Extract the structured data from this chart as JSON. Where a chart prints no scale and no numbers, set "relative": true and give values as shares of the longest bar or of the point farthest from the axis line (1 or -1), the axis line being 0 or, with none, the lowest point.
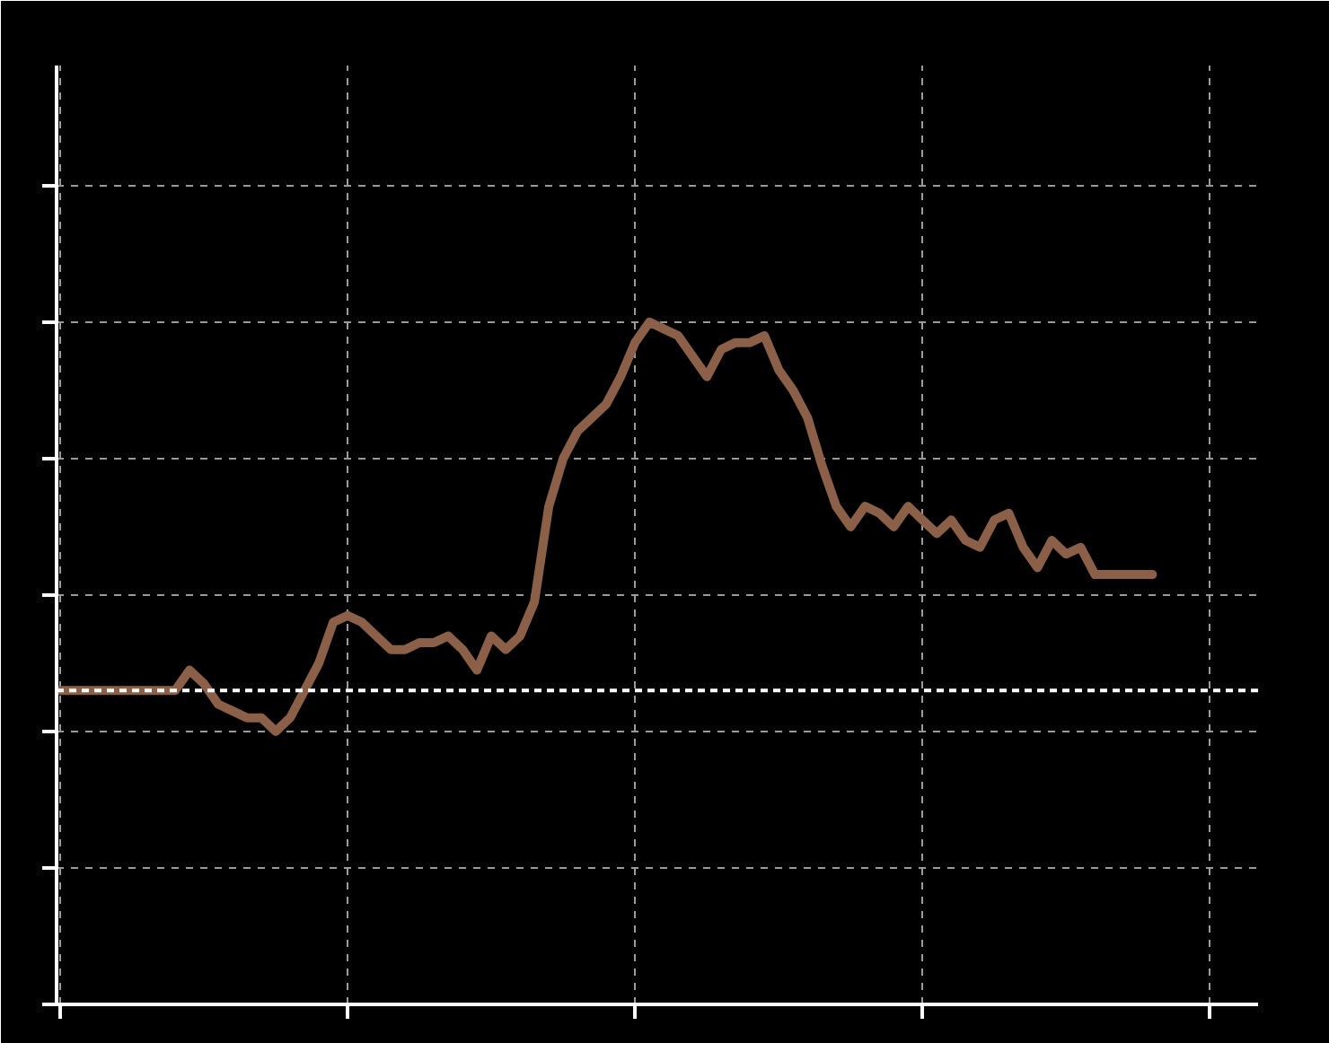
{
  "chart_data": {
    "type": "line",
    "relative": true,
    "grid": true,
    "categories": [
      null,
      null,
      null,
      null,
      null,
      null,
      null,
      null,
      null,
      null,
      null,
      null,
      null,
      null,
      null,
      null,
      null,
      null,
      null,
      null,
      null,
      null,
      null,
      null,
      null,
      null,
      null,
      null,
      null,
      null,
      null,
      null,
      null,
      null,
      null,
      null,
      null,
      null,
      null,
      null,
      null,
      null,
      null,
      null,
      null,
      null,
      null,
      null,
      null,
      null,
      null,
      null,
      null,
      null,
      null,
      null,
      null,
      null,
      null,
      null,
      null,
      null,
      null,
      null,
      null,
      null,
      null,
      null,
      null,
      null,
      null,
      null,
      null,
      null,
      null,
      null,
      null
    ],
    "series": [
      {
        "color": "#8c6046",
        "values": [
          0.46,
          0.46,
          0.46,
          0.46,
          0.46,
          0.46,
          0.46,
          0.46,
          0.46,
          0.49,
          0.47,
          0.44,
          0.43,
          0.42,
          0.42,
          0.4,
          0.42,
          0.46,
          0.5,
          0.56,
          0.57,
          0.56,
          0.54,
          0.52,
          0.52,
          0.53,
          0.53,
          0.54,
          0.52,
          0.49,
          0.54,
          0.52,
          0.54,
          0.59,
          0.73,
          0.8,
          0.84,
          0.86,
          0.88,
          0.92,
          0.97,
          1.0,
          0.99,
          0.98,
          0.95,
          0.92,
          0.96,
          0.97,
          0.97,
          0.98,
          0.93,
          0.9,
          0.86,
          0.79,
          0.73,
          0.7,
          0.73,
          0.72,
          0.7,
          0.73,
          0.71,
          0.69,
          0.71,
          0.68,
          0.67,
          0.71,
          0.72,
          0.67,
          0.64,
          0.68,
          0.66,
          0.67,
          0.63,
          0.63,
          0.63,
          0.63,
          0.63
        ]
      }
    ],
    "ref_lines": [
      {
        "axis": "y",
        "value": 0.46,
        "color": "#ffffff",
        "line_style": "dashed"
      }
    ]
  }
}
